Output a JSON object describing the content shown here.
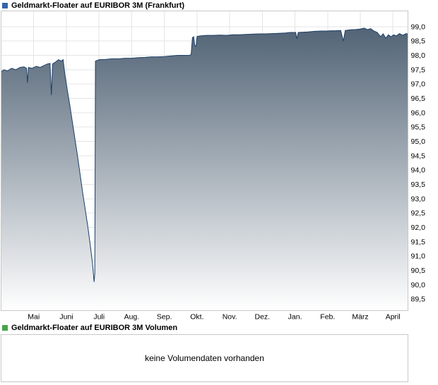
{
  "header": {
    "title": "Geldmarkt-Floater auf EURIBOR 3M (Frankfurt)",
    "icon_color": "#3465a8"
  },
  "volume_section": {
    "title": "Geldmarkt-Floater auf EURIBOR 3M Volumen",
    "icon_color": "#46a546",
    "message": "keine Volumendaten vorhanden"
  },
  "chart_data": {
    "type": "area",
    "title": "Geldmarkt-Floater auf EURIBOR 3M (Frankfurt)",
    "legend_position": "top-left",
    "grid": true,
    "colors": {
      "gridline": "#e4e4e4",
      "plot_border": "#c8c8c8",
      "background": "#ffffff"
    },
    "x_axis": {
      "tick_labels": [
        "Mai",
        "Juni",
        "Juli",
        "Aug.",
        "Sep.",
        "Okt.",
        "Nov.",
        "Dez.",
        "Jan.",
        "Feb.",
        "März",
        "April"
      ],
      "tick_positions": [
        1,
        2,
        3,
        4,
        5,
        6,
        7,
        8,
        9,
        10,
        11,
        12
      ],
      "xlim": [
        0,
        12.46
      ]
    },
    "y_axis": {
      "side": "right",
      "tick_labels": [
        "99,0",
        "98,5",
        "98,0",
        "97,5",
        "97,0",
        "96,5",
        "96,0",
        "95,5",
        "95,0",
        "94,5",
        "94,0",
        "93,5",
        "93,0",
        "92,5",
        "92,0",
        "91,5",
        "91,0",
        "90,5",
        "90,0",
        "89,5"
      ],
      "tick_values": [
        99.0,
        98.5,
        98.0,
        97.5,
        97.0,
        96.5,
        96.0,
        95.5,
        95.0,
        94.5,
        94.0,
        93.5,
        93.0,
        92.5,
        92.0,
        91.5,
        91.0,
        90.5,
        90.0,
        89.5
      ],
      "ylim": [
        89.1,
        99.55
      ]
    },
    "series": [
      {
        "name": "Geldmarkt-Floater auf EURIBOR 3M",
        "line_color": "#1c3e66",
        "fill_top_color": "#475a6d",
        "fill_bottom_color": "#ffffff",
        "points": [
          [
            0.0,
            97.42
          ],
          [
            0.08,
            97.5
          ],
          [
            0.2,
            97.46
          ],
          [
            0.32,
            97.55
          ],
          [
            0.45,
            97.5
          ],
          [
            0.58,
            97.58
          ],
          [
            0.7,
            97.6
          ],
          [
            0.78,
            97.55
          ],
          [
            0.81,
            97.05
          ],
          [
            0.84,
            97.58
          ],
          [
            0.95,
            97.55
          ],
          [
            1.08,
            97.62
          ],
          [
            1.2,
            97.58
          ],
          [
            1.32,
            97.65
          ],
          [
            1.42,
            97.7
          ],
          [
            1.5,
            97.72
          ],
          [
            1.54,
            96.62
          ],
          [
            1.58,
            97.7
          ],
          [
            1.68,
            97.78
          ],
          [
            1.76,
            97.85
          ],
          [
            1.84,
            97.8
          ],
          [
            1.9,
            97.85
          ],
          [
            1.96,
            97.3
          ],
          [
            2.02,
            96.85
          ],
          [
            2.1,
            96.3
          ],
          [
            2.18,
            95.7
          ],
          [
            2.26,
            95.1
          ],
          [
            2.34,
            94.5
          ],
          [
            2.42,
            93.85
          ],
          [
            2.5,
            93.2
          ],
          [
            2.58,
            92.6
          ],
          [
            2.66,
            92.0
          ],
          [
            2.74,
            91.3
          ],
          [
            2.8,
            90.75
          ],
          [
            2.85,
            90.1
          ],
          [
            2.87,
            90.4
          ],
          [
            2.89,
            97.8
          ],
          [
            3.0,
            97.85
          ],
          [
            3.2,
            97.86
          ],
          [
            3.4,
            97.88
          ],
          [
            3.6,
            97.88
          ],
          [
            3.8,
            97.9
          ],
          [
            4.0,
            97.9
          ],
          [
            4.2,
            97.92
          ],
          [
            4.4,
            97.93
          ],
          [
            4.6,
            97.95
          ],
          [
            4.8,
            97.95
          ],
          [
            5.0,
            97.96
          ],
          [
            5.2,
            97.98
          ],
          [
            5.4,
            98.0
          ],
          [
            5.6,
            98.0
          ],
          [
            5.75,
            98.0
          ],
          [
            5.82,
            98.02
          ],
          [
            5.86,
            98.62
          ],
          [
            5.9,
            98.65
          ],
          [
            5.93,
            98.35
          ],
          [
            5.97,
            98.32
          ],
          [
            6.0,
            98.66
          ],
          [
            6.1,
            98.68
          ],
          [
            6.3,
            98.7
          ],
          [
            6.5,
            98.7
          ],
          [
            6.7,
            98.71
          ],
          [
            6.9,
            98.7
          ],
          [
            7.1,
            98.72
          ],
          [
            7.3,
            98.72
          ],
          [
            7.5,
            98.73
          ],
          [
            7.7,
            98.74
          ],
          [
            7.9,
            98.75
          ],
          [
            8.1,
            98.75
          ],
          [
            8.3,
            98.76
          ],
          [
            8.5,
            98.77
          ],
          [
            8.7,
            98.78
          ],
          [
            8.85,
            98.8
          ],
          [
            8.95,
            98.8
          ],
          [
            9.02,
            98.8
          ],
          [
            9.06,
            98.58
          ],
          [
            9.1,
            98.8
          ],
          [
            9.25,
            98.81
          ],
          [
            9.4,
            98.82
          ],
          [
            9.6,
            98.84
          ],
          [
            9.8,
            98.85
          ],
          [
            9.95,
            98.85
          ],
          [
            10.1,
            98.86
          ],
          [
            10.25,
            98.86
          ],
          [
            10.4,
            98.87
          ],
          [
            10.48,
            98.5
          ],
          [
            10.54,
            98.87
          ],
          [
            10.7,
            98.89
          ],
          [
            10.85,
            98.9
          ],
          [
            11.0,
            98.92
          ],
          [
            11.12,
            98.95
          ],
          [
            11.22,
            98.9
          ],
          [
            11.32,
            98.93
          ],
          [
            11.42,
            98.85
          ],
          [
            11.52,
            98.8
          ],
          [
            11.62,
            98.65
          ],
          [
            11.7,
            98.75
          ],
          [
            11.78,
            98.6
          ],
          [
            11.86,
            98.72
          ],
          [
            11.94,
            98.65
          ],
          [
            12.02,
            98.72
          ],
          [
            12.1,
            98.68
          ],
          [
            12.2,
            98.76
          ],
          [
            12.3,
            98.7
          ],
          [
            12.4,
            98.76
          ],
          [
            12.46,
            98.74
          ]
        ]
      }
    ]
  }
}
